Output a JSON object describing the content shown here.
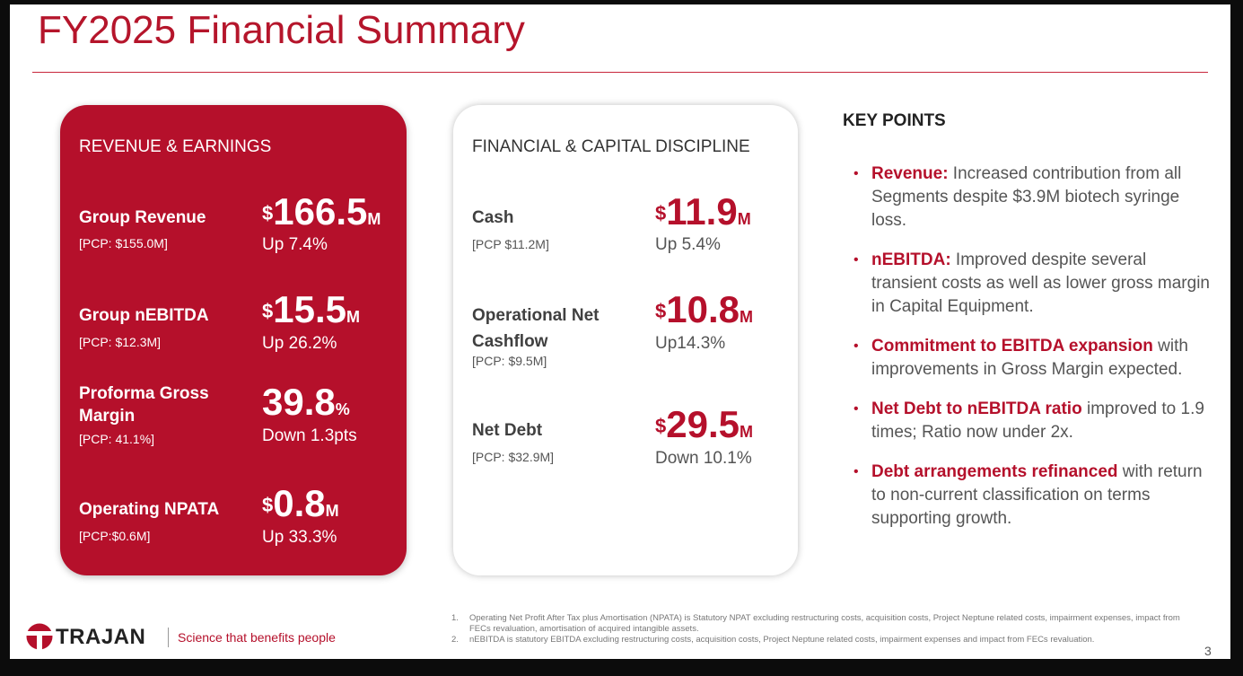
{
  "title": "FY2025 Financial Summary",
  "revenue_card": {
    "heading": "REVENUE & EARNINGS",
    "metrics": [
      {
        "label": "Group Revenue",
        "pcp": "[PCP: $155.0M]",
        "prefix": "$",
        "value": "166.5",
        "unit": "M",
        "change": "Up 7.4%"
      },
      {
        "label": "Group nEBITDA",
        "pcp": "[PCP: $12.3M]",
        "prefix": "$",
        "value": "15.5",
        "unit": "M",
        "change": "Up 26.2%"
      },
      {
        "label_line1": "Proforma Gross",
        "label_line2": "Margin",
        "pcp": "[PCP: 41.1%]",
        "prefix": "",
        "value": "39.8",
        "unit": "%",
        "change": "Down 1.3pts"
      },
      {
        "label": "Operating NPATA",
        "pcp": "[PCP:$0.6M]",
        "prefix": "$",
        "value": "0.8",
        "unit": "M",
        "change": "Up 33.3%"
      }
    ]
  },
  "capital_card": {
    "heading": "FINANCIAL & CAPITAL DISCIPLINE",
    "metrics": [
      {
        "label": "Cash",
        "pcp": "[PCP $11.2M]",
        "prefix": "$",
        "value": "11.9",
        "unit": "M",
        "change": "Up 5.4%"
      },
      {
        "label_line1": "Operational Net",
        "label_line2": "Cashflow",
        "pcp": "[PCP: $9.5M]",
        "prefix": "$",
        "value": "10.8",
        "unit": "M",
        "change": "Up14.3%"
      },
      {
        "label": "Net Debt",
        "pcp": "[PCP: $32.9M]",
        "prefix": "$",
        "value": "29.5",
        "unit": "M",
        "change": "Down 10.1%"
      }
    ]
  },
  "key_points": {
    "title": "KEY POINTS",
    "bullet": "•",
    "items": [
      {
        "bold": "Revenue:",
        "text": " Increased contribution from all Segments despite $3.9M biotech syringe loss."
      },
      {
        "bold": "nEBITDA:",
        "text": " Improved despite several transient costs as well as lower gross margin in Capital Equipment."
      },
      {
        "bold": "Commitment to EBITDA expansion",
        "text": " with improvements in Gross Margin expected."
      },
      {
        "bold": "Net Debt to nEBITDA ratio",
        "text": " improved to 1.9 times; Ratio now under 2x."
      },
      {
        "bold": "Debt arrangements refinanced",
        "text": " with return to non-current classification on terms supporting growth."
      }
    ]
  },
  "footer": {
    "logo_text": "TRAJAN",
    "tagline": "Science that benefits people",
    "footnotes": [
      {
        "num": "1.",
        "text": "Operating Net Profit After Tax plus Amortisation (NPATA) is Statutory NPAT excluding restructuring costs, acquisition costs, Project Neptune related costs, impairment expenses, impact from FECs revaluation, amortisation of acquired intangible assets."
      },
      {
        "num": "2.",
        "text": "nEBITDA is statutory EBITDA excluding restructuring costs, acquisition costs, Project Neptune related costs, impairment expenses and impact from FECs revaluation."
      }
    ],
    "page_number": "3"
  },
  "colors": {
    "brand_red": "#b5102b",
    "text_gray": "#555555"
  }
}
